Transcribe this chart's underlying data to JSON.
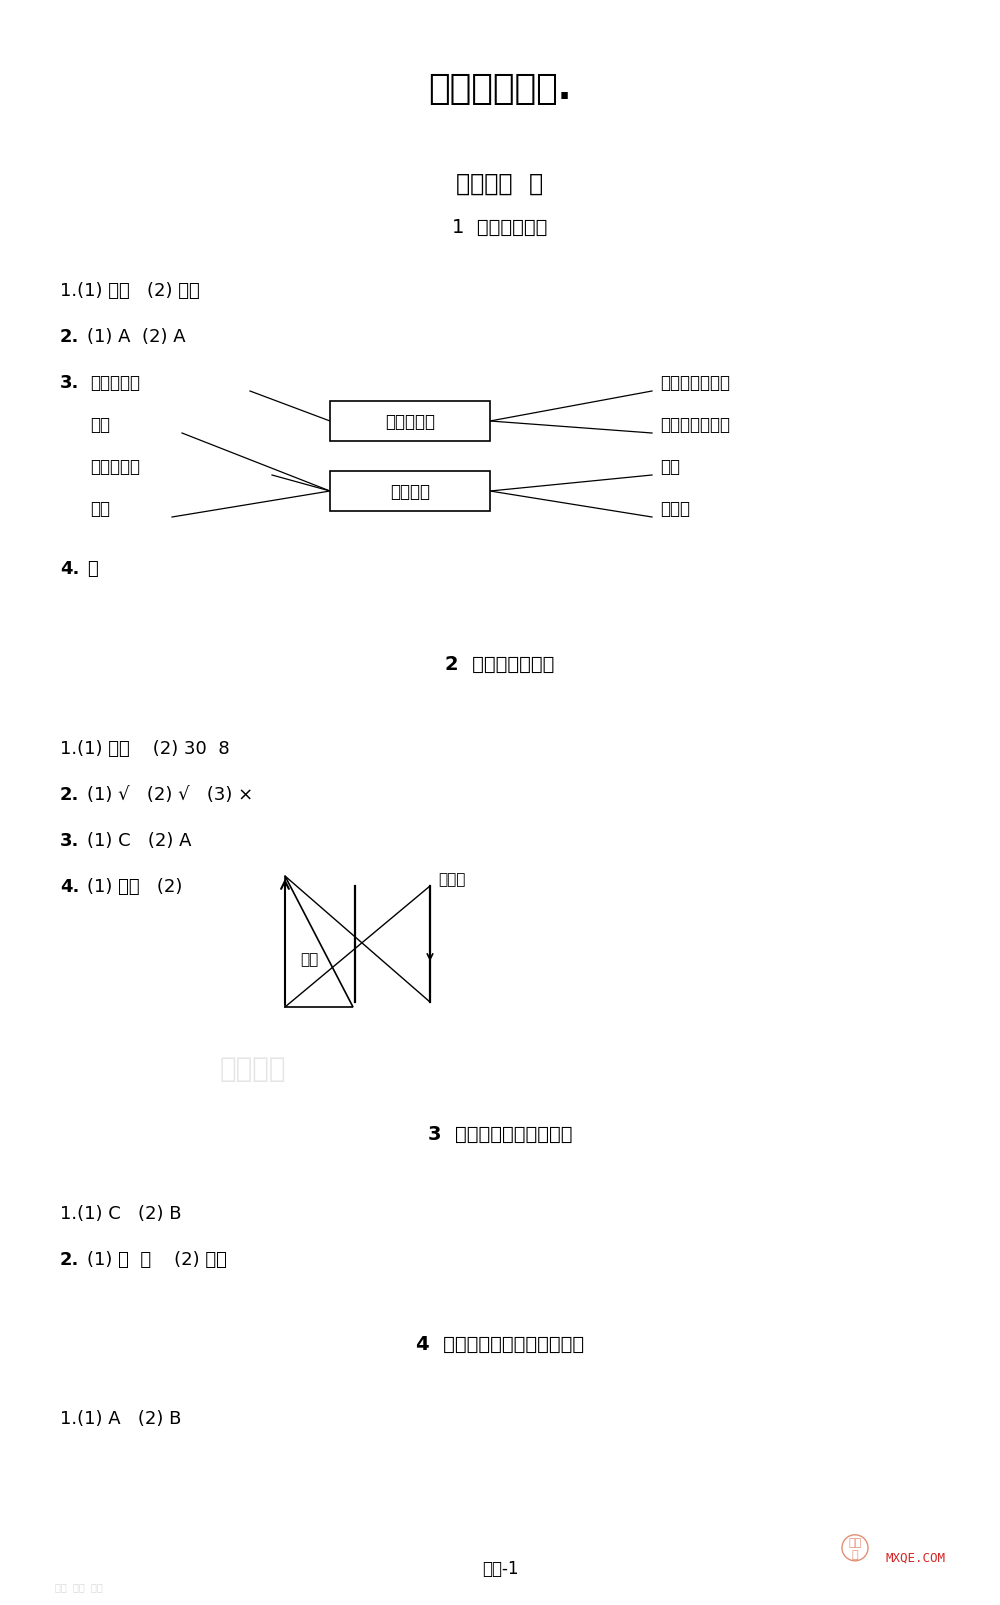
{
  "title": "部分参考答案.",
  "bg_color": "#ffffff",
  "unit1_title": "第一单元  光",
  "lesson1_title": "1  有关光的思考",
  "lesson1_q1": "1.(1) 光源   (2) 太阳",
  "lesson1_q2": "2.(1) A  (2) A",
  "lesson1_q3_label": "3.",
  "lesson1_q4": "4. 略",
  "left_items": [
    "点燃的蜡烛",
    "眼镜",
    "点亮的路灯",
    "月光"
  ],
  "box1_label": "不属于光源",
  "box2_label": "属于光源",
  "right_items": [
    "高楼的玻璃幕墙",
    "亮着的手机屏幕",
    "雷电",
    "发光鱼"
  ],
  "lesson2_title": "2  光是怎样传播的",
  "lesson2_q1": "1.(1) 直线    (2) 30  8",
  "lesson2_q2": "2.(1) √   (2) √   (3) ×",
  "lesson2_q3": "3.(1) C   (2) A",
  "lesson2_q4_prefix": "4.(1) 直线   (2)",
  "diagram_label_small": "小孔",
  "diagram_label_screen": "接收屏",
  "lesson3_title": "3  光的传播会遇到阻碍吗",
  "lesson3_q1": "1.(1) C   (2) B",
  "lesson3_q2": "2.(1) 东  南    (2) 日食",
  "lesson4_title": "4  光的传播方向会发生改变吗",
  "lesson4_q1": "1.(1) A   (2) B",
  "footer": "答案-1",
  "logo_text": "MXQE.COM"
}
